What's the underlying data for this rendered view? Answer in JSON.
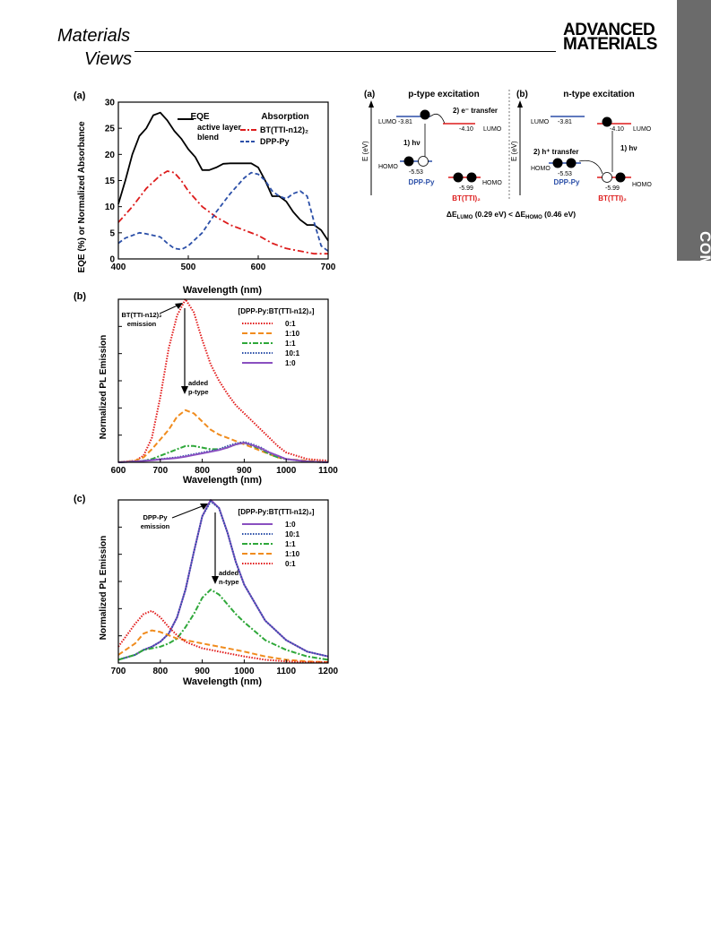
{
  "header": {
    "left_logo_line1": "Materials",
    "left_logo_line2": "Views",
    "right_logo_line1": "ADVANCED",
    "right_logo_line2": "MATERIALS",
    "side_tab": "COMMUNICATION"
  },
  "panel_a": {
    "label": "(a)",
    "legend_eqe_title": "EQE",
    "legend_eqe_item_line1": "active layer",
    "legend_eqe_item_line2": "blend",
    "legend_abs_title": "Absorption",
    "legend_abs_item1": "BT(TTI-n12)₂",
    "legend_abs_item2": "DPP-Py",
    "colors": {
      "eqe": "#000000",
      "bt": "#dd1c1c",
      "dpp": "#2b4fa8"
    }
  },
  "panel_b": {
    "label": "(b)",
    "legend_title": "[DPP-Py:BT(TTI-n12)₂]",
    "legend_items": [
      "0:1",
      "1:10",
      "1:1",
      "10:1",
      "1:0"
    ],
    "annot_emission_line1": "BT(TTI-n12)₂",
    "annot_emission_line2": "emission",
    "annot_added_line1": "added",
    "annot_added_line2": "p-type",
    "colors": [
      "#e21b1b",
      "#f08c1e",
      "#2fa83a",
      "#2b4fa8",
      "#8a4fc0"
    ]
  },
  "panel_c": {
    "label": "(c)",
    "legend_title": "[DPP-Py:BT(TTI-n12)₂]",
    "legend_items": [
      "1:0",
      "10:1",
      "1:1",
      "1:10",
      "0:1"
    ],
    "annot_emission_line1": "DPP-Py",
    "annot_emission_line2": "emission",
    "annot_added_line1": "added",
    "annot_added_line2": "n-type",
    "colors": [
      "#8a4fc0",
      "#2b4fa8",
      "#2fa83a",
      "#f08c1e",
      "#e21b1b"
    ]
  },
  "energy": {
    "left_label": "(a)",
    "left_title": "p-type excitation",
    "right_label": "(b)",
    "right_title": "n-type excitation",
    "axis_label": "E (eV)",
    "lumo": "LUMO",
    "homo": "HOMO",
    "dpp_lumo": "-3.81",
    "dpp_homo": "-5.53",
    "bt_lumo": "-4.10",
    "bt_homo": "-5.99",
    "step_hv": "1) hν",
    "step_e_transfer": "2) e⁻ transfer",
    "step_h_transfer": "2) h⁺ transfer",
    "donor": "DPP-Py",
    "acceptor": "BT(TTI)₂",
    "delta": "ΔE_LUMO (0.29 eV) < ΔE_HOMO (0.46 eV)",
    "delta_part1": "ΔE",
    "delta_sub1": "LUMO",
    "delta_part2": " (0.29 eV) < ΔE",
    "delta_sub2": "HOMO",
    "delta_part3": " (0.46 eV)"
  },
  "chart_data": [
    {
      "type": "line",
      "xlabel": "Wavelength (nm)",
      "ylabel": "EQE (%) or Normalized Absorbance",
      "xlim": [
        400,
        700
      ],
      "ylim": [
        0,
        30
      ],
      "xticks": [
        "400",
        "500",
        "600",
        "700"
      ],
      "yticks": [
        "0",
        "5",
        "10",
        "15",
        "20",
        "25",
        "30"
      ],
      "series": [
        {
          "name": "active layer blend",
          "x": [
            400,
            410,
            420,
            430,
            440,
            450,
            460,
            470,
            480,
            490,
            500,
            510,
            520,
            530,
            540,
            550,
            560,
            570,
            580,
            590,
            600,
            610,
            620,
            630,
            640,
            650,
            660,
            670,
            680,
            690,
            700
          ],
          "y": [
            10.5,
            15,
            20,
            23.5,
            25,
            27.5,
            28,
            26.5,
            24.5,
            23,
            21,
            19.5,
            17,
            17,
            17.5,
            18.2,
            18.3,
            18.3,
            18.3,
            18.3,
            17.5,
            15,
            12,
            12,
            11,
            9,
            7.5,
            6.5,
            6.5,
            5.5,
            3.5
          ]
        },
        {
          "name": "BT(TTI-n12)₂",
          "x": [
            400,
            420,
            440,
            460,
            470,
            480,
            490,
            500,
            520,
            540,
            560,
            580,
            600,
            620,
            640,
            660,
            680,
            700
          ],
          "y": [
            7,
            10,
            13.5,
            16,
            16.8,
            16.5,
            15,
            13,
            10,
            8,
            6.5,
            5.5,
            4.5,
            3,
            2,
            1.5,
            1,
            1
          ]
        },
        {
          "name": "DPP-Py",
          "x": [
            400,
            410,
            420,
            430,
            440,
            450,
            460,
            470,
            480,
            490,
            500,
            520,
            540,
            560,
            580,
            590,
            600,
            610,
            620,
            630,
            640,
            650,
            660,
            670,
            680,
            690,
            700
          ],
          "y": [
            3,
            4,
            4.5,
            5,
            4.8,
            4.5,
            4.2,
            3,
            2,
            1.8,
            2.5,
            5,
            9,
            12.5,
            15.5,
            16.5,
            16.2,
            15,
            13,
            12,
            11.5,
            12.5,
            13,
            12,
            7,
            2.5,
            1.5
          ]
        }
      ]
    },
    {
      "type": "line",
      "xlabel": "Wavelength (nm)",
      "ylabel": "Normalized PL Emission",
      "xlim": [
        600,
        1100
      ],
      "ylim": [
        0,
        1
      ],
      "xticks": [
        "600",
        "700",
        "800",
        "900",
        "1000",
        "1100"
      ],
      "series": [
        {
          "name": "0:1",
          "x": [
            600,
            640,
            660,
            680,
            700,
            720,
            740,
            760,
            780,
            800,
            820,
            840,
            860,
            880,
            900,
            920,
            940,
            960,
            980,
            1000,
            1050,
            1100
          ],
          "y": [
            0,
            0.01,
            0.04,
            0.15,
            0.4,
            0.7,
            0.9,
            1.0,
            0.92,
            0.75,
            0.6,
            0.5,
            0.42,
            0.35,
            0.3,
            0.25,
            0.2,
            0.15,
            0.1,
            0.06,
            0.02,
            0.01
          ]
        },
        {
          "name": "1:10",
          "x": [
            600,
            640,
            660,
            680,
            700,
            720,
            740,
            760,
            780,
            800,
            820,
            840,
            860,
            880,
            900,
            920,
            940,
            960,
            980,
            1000,
            1050,
            1100
          ],
          "y": [
            0,
            0.01,
            0.03,
            0.08,
            0.14,
            0.2,
            0.28,
            0.32,
            0.3,
            0.25,
            0.2,
            0.17,
            0.15,
            0.13,
            0.11,
            0.09,
            0.07,
            0.05,
            0.03,
            0.02,
            0.01,
            0
          ]
        },
        {
          "name": "1:1",
          "x": [
            600,
            640,
            660,
            680,
            700,
            720,
            740,
            760,
            780,
            800,
            820,
            840,
            860,
            880,
            900,
            920,
            940,
            960,
            980,
            1000,
            1050,
            1100
          ],
          "y": [
            0,
            0.005,
            0.01,
            0.02,
            0.04,
            0.06,
            0.08,
            0.1,
            0.1,
            0.09,
            0.08,
            0.08,
            0.09,
            0.11,
            0.12,
            0.1,
            0.08,
            0.05,
            0.03,
            0.02,
            0.005,
            0
          ]
        },
        {
          "name": "10:1",
          "x": [
            600,
            640,
            660,
            680,
            700,
            720,
            740,
            760,
            780,
            800,
            820,
            840,
            860,
            880,
            900,
            920,
            940,
            960,
            980,
            1000,
            1050,
            1100
          ],
          "y": [
            0,
            0.005,
            0.01,
            0.015,
            0.02,
            0.025,
            0.03,
            0.04,
            0.05,
            0.06,
            0.07,
            0.08,
            0.1,
            0.115,
            0.125,
            0.11,
            0.09,
            0.06,
            0.04,
            0.02,
            0.005,
            0
          ]
        },
        {
          "name": "1:0",
          "x": [
            600,
            640,
            660,
            680,
            700,
            720,
            740,
            760,
            780,
            800,
            820,
            840,
            860,
            880,
            900,
            920,
            940,
            960,
            980,
            1000,
            1050,
            1100
          ],
          "y": [
            0,
            0.005,
            0.008,
            0.012,
            0.018,
            0.022,
            0.027,
            0.035,
            0.045,
            0.055,
            0.065,
            0.075,
            0.09,
            0.11,
            0.12,
            0.105,
            0.085,
            0.06,
            0.04,
            0.02,
            0.005,
            0
          ]
        }
      ]
    },
    {
      "type": "line",
      "xlabel": "Wavelength (nm)",
      "ylabel": "Normalized PL Emission",
      "xlim": [
        700,
        1200
      ],
      "ylim": [
        0,
        1
      ],
      "xticks": [
        "700",
        "800",
        "900",
        "1000",
        "1100",
        "1200"
      ],
      "series": [
        {
          "name": "1:0",
          "x": [
            700,
            740,
            760,
            780,
            800,
            820,
            840,
            860,
            880,
            900,
            920,
            940,
            960,
            980,
            1000,
            1050,
            1100,
            1150,
            1200
          ],
          "y": [
            0.02,
            0.05,
            0.08,
            0.1,
            0.13,
            0.18,
            0.28,
            0.45,
            0.68,
            0.9,
            1.0,
            0.95,
            0.8,
            0.62,
            0.48,
            0.26,
            0.14,
            0.07,
            0.04
          ]
        },
        {
          "name": "10:1",
          "x": [
            700,
            740,
            760,
            780,
            800,
            820,
            840,
            860,
            880,
            900,
            920,
            940,
            960,
            980,
            1000,
            1050,
            1100,
            1150,
            1200
          ],
          "y": [
            0.02,
            0.05,
            0.08,
            0.1,
            0.13,
            0.18,
            0.28,
            0.45,
            0.68,
            0.9,
            0.99,
            0.95,
            0.8,
            0.62,
            0.48,
            0.26,
            0.14,
            0.07,
            0.04
          ]
        },
        {
          "name": "1:1",
          "x": [
            700,
            740,
            760,
            780,
            800,
            820,
            840,
            860,
            880,
            900,
            920,
            940,
            960,
            980,
            1000,
            1050,
            1100,
            1150,
            1200
          ],
          "y": [
            0.02,
            0.05,
            0.08,
            0.09,
            0.1,
            0.12,
            0.15,
            0.22,
            0.3,
            0.4,
            0.45,
            0.42,
            0.36,
            0.3,
            0.25,
            0.14,
            0.08,
            0.04,
            0.02
          ]
        },
        {
          "name": "1:10",
          "x": [
            700,
            740,
            760,
            780,
            800,
            820,
            840,
            860,
            880,
            900,
            920,
            940,
            960,
            980,
            1000,
            1050,
            1100,
            1150,
            1200
          ],
          "y": [
            0.05,
            0.12,
            0.18,
            0.2,
            0.19,
            0.17,
            0.15,
            0.14,
            0.13,
            0.12,
            0.11,
            0.1,
            0.09,
            0.08,
            0.07,
            0.04,
            0.02,
            0.01,
            0.005
          ]
        },
        {
          "name": "0:1",
          "x": [
            700,
            740,
            760,
            780,
            800,
            820,
            840,
            860,
            880,
            900,
            920,
            940,
            960,
            980,
            1000,
            1050,
            1100,
            1150,
            1200
          ],
          "y": [
            0.1,
            0.24,
            0.3,
            0.32,
            0.28,
            0.22,
            0.17,
            0.13,
            0.11,
            0.09,
            0.08,
            0.07,
            0.06,
            0.05,
            0.04,
            0.02,
            0.01,
            0.005,
            0.005
          ]
        }
      ]
    }
  ]
}
